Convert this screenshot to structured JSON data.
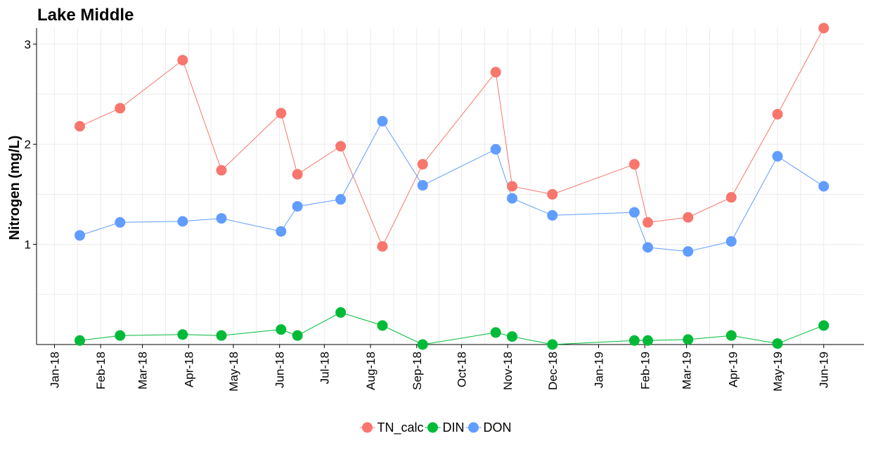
{
  "chart_data": {
    "type": "line",
    "title": "Lake Middle",
    "xlabel": "",
    "ylabel": "Nitrogen (mg/L)",
    "ylim": [
      0,
      3.16
    ],
    "xlim": [
      "2017-12-20",
      "2019-06-28"
    ],
    "y_ticks": [
      1,
      2,
      3
    ],
    "y_tick_labels": [
      "1",
      "2",
      "3"
    ],
    "x_ticks": [
      "2018-01-01",
      "2018-02-01",
      "2018-03-01",
      "2018-04-01",
      "2018-05-01",
      "2018-06-01",
      "2018-07-01",
      "2018-08-01",
      "2018-09-01",
      "2018-10-01",
      "2018-11-01",
      "2018-12-01",
      "2019-01-01",
      "2019-02-01",
      "2019-03-01",
      "2019-04-01",
      "2019-05-01",
      "2019-06-01"
    ],
    "x_tick_labels": [
      "Jan-18",
      "Feb-18",
      "Mar-18",
      "Apr-18",
      "May-18",
      "Jun-18",
      "Jul-18",
      "Aug-18",
      "Sep-18",
      "Oct-18",
      "Nov-18",
      "Dec-18",
      "Jan-19",
      "Feb-19",
      "Mar-19",
      "Apr-19",
      "May-19",
      "Jun-19"
    ],
    "x": [
      "2018-01-18",
      "2018-02-14",
      "2018-03-28",
      "2018-04-23",
      "2018-06-02",
      "2018-06-13",
      "2018-07-12",
      "2018-08-09",
      "2018-09-05",
      "2018-10-24",
      "2018-11-04",
      "2018-12-01",
      "2019-01-25",
      "2019-02-03",
      "2019-03-02",
      "2019-03-31",
      "2019-05-01",
      "2019-06-01"
    ],
    "grid": true,
    "legend_position": "bottom",
    "series": [
      {
        "name": "TN_calc",
        "color": "#F8766D",
        "values": [
          2.18,
          2.36,
          2.84,
          1.74,
          2.31,
          1.7,
          1.98,
          0.98,
          1.8,
          2.72,
          1.58,
          1.5,
          1.8,
          1.22,
          1.27,
          1.47,
          2.3,
          3.16
        ]
      },
      {
        "name": "DIN",
        "color": "#00BA38",
        "values": [
          0.04,
          0.09,
          0.1,
          0.09,
          0.15,
          0.09,
          0.32,
          0.19,
          0.0,
          0.12,
          0.08,
          0.0,
          0.04,
          0.04,
          0.05,
          0.09,
          0.01,
          0.19
        ]
      },
      {
        "name": "DON",
        "color": "#619CFF",
        "values": [
          1.09,
          1.22,
          1.23,
          1.26,
          1.13,
          1.38,
          1.45,
          2.23,
          1.59,
          1.95,
          1.46,
          1.29,
          1.32,
          0.97,
          0.93,
          1.03,
          1.88,
          1.58
        ]
      }
    ]
  }
}
